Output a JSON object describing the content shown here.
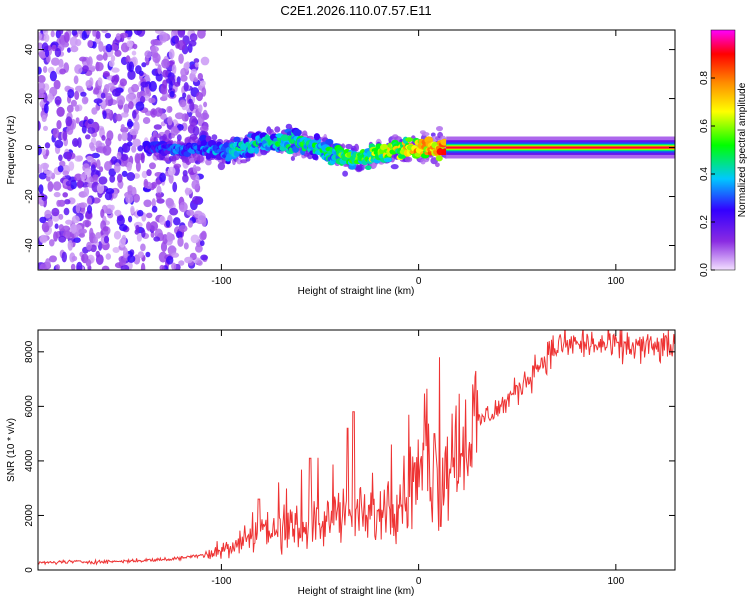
{
  "figure": {
    "title": "C2E1.2026.110.07.57.E11"
  },
  "chart_data": [
    {
      "type": "heatmap",
      "xlabel": "Height of straight line (km)",
      "ylabel": "Frequency (Hz)",
      "xlim": [
        -193,
        130
      ],
      "ylim": [
        -50,
        48
      ],
      "xticks": [
        -100,
        0,
        100
      ],
      "xtick_labels": [
        "-100",
        "0",
        "100"
      ],
      "yticks": [
        -40,
        -20,
        0,
        20,
        40
      ],
      "ytick_labels": [
        "-40",
        "-20",
        "0",
        "20",
        "40"
      ],
      "colorbar": {
        "label": "Normalized spectral amplitude",
        "range": [
          0.0,
          1.0
        ],
        "ticks": [
          0.0,
          0.2,
          0.4,
          0.6,
          0.8
        ],
        "tick_labels": [
          "0.0",
          "0.2",
          "0.4",
          "0.6",
          "0.8"
        ],
        "colors": [
          "#f3e0ff",
          "#8a2be2",
          "#3300ff",
          "#00c8ff",
          "#00ff00",
          "#ffff00",
          "#ff8c00",
          "#ff0000",
          "#ff00ff"
        ]
      },
      "ridge": {
        "height_km": [
          -135,
          -120,
          -110,
          -100,
          -90,
          -80,
          -70,
          -60,
          -50,
          -40,
          -30,
          -20,
          -10,
          0,
          10,
          15,
          130
        ],
        "frequency_hz": [
          0,
          -1,
          0,
          -2,
          0,
          2,
          2,
          2,
          0,
          -3,
          -4,
          -3,
          0,
          0,
          0,
          0,
          0
        ],
        "peak_amplitude": [
          0.3,
          0.35,
          0.35,
          0.4,
          0.45,
          0.45,
          0.5,
          0.5,
          0.5,
          0.55,
          0.6,
          0.65,
          0.7,
          0.8,
          0.85,
          0.9,
          0.9
        ]
      }
    },
    {
      "type": "line",
      "xlabel": "Height of straight line (km)",
      "ylabel": "SNR (10 * v/v)",
      "xlim": [
        -193,
        130
      ],
      "ylim": [
        0,
        8800
      ],
      "xticks": [
        -100,
        0,
        100
      ],
      "xtick_labels": [
        "-100",
        "0",
        "100"
      ],
      "yticks": [
        0,
        2000,
        4000,
        6000,
        8000
      ],
      "ytick_labels": [
        "0",
        "2000",
        "4000",
        "6000",
        "8000"
      ],
      "color": "#ee3333",
      "series": [
        {
          "name": "SNR",
          "x": [
            -193,
            -180,
            -160,
            -140,
            -125,
            -115,
            -105,
            -95,
            -85,
            -80,
            -75,
            -70,
            -65,
            -60,
            -55,
            -50,
            -45,
            -40,
            -35,
            -30,
            -25,
            -20,
            -15,
            -10,
            -5,
            0,
            5,
            8,
            10,
            11,
            12,
            15,
            20,
            25,
            30,
            35,
            40,
            45,
            50,
            55,
            60,
            65,
            70,
            80,
            90,
            100,
            110,
            120,
            130
          ],
          "y": [
            250,
            300,
            300,
            350,
            400,
            500,
            650,
            800,
            1200,
            1500,
            1500,
            1300,
            1400,
            1600,
            1700,
            1600,
            1800,
            2300,
            1900,
            2000,
            1800,
            2000,
            2300,
            2600,
            3000,
            3200,
            3700,
            3500,
            3100,
            2400,
            3700,
            4000,
            4600,
            5000,
            5400,
            5700,
            5900,
            6200,
            6600,
            7000,
            7500,
            7800,
            8200,
            8300,
            8250,
            8200,
            8200,
            8150,
            8200
          ],
          "spikes": [
            {
              "x": 11,
              "y": 7800
            },
            {
              "x": -33,
              "y": 5800
            },
            {
              "x": -36,
              "y": 5200
            },
            {
              "x": -55,
              "y": 4100
            },
            {
              "x": -81,
              "y": 2600
            },
            {
              "x": 8,
              "y": 5000
            }
          ]
        }
      ]
    }
  ]
}
